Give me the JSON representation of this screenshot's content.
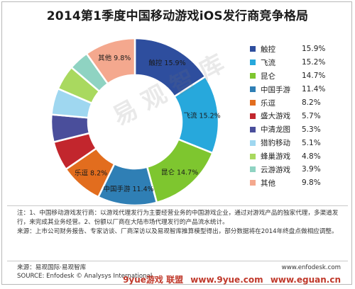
{
  "chart_data": {
    "type": "pie",
    "title": "2014第1季度中国移动游戏iOS发行商竞争格局",
    "categories": [
      "触控",
      "飞流",
      "昆仑",
      "中国手游",
      "乐逗",
      "盛大游戏",
      "中清龙图",
      "猎豹移动",
      "蜂巢游戏",
      "云游游戏",
      "其他"
    ],
    "value_labels": [
      "15.9%",
      "15.2%",
      "14.7%",
      "11.4%",
      "8.2%",
      "5.7%",
      "5.3%",
      "5.1%",
      "4.8%",
      "3.9%",
      "9.8%"
    ],
    "values": [
      15.9,
      15.2,
      14.7,
      11.4,
      8.2,
      5.7,
      5.3,
      5.1,
      4.8,
      3.9,
      9.8
    ],
    "colors": [
      "#2e4e9e",
      "#27a8dc",
      "#7ec62f",
      "#2f7fb5",
      "#e26d1e",
      "#c2262d",
      "#4a4e9b",
      "#9fd7f0",
      "#a9d95f",
      "#8fd3c2",
      "#f4a88e"
    ],
    "donut": true,
    "legend_position": "right"
  },
  "notes": {
    "line1": "注：1、中国移动游戏发行商：以游戏代理发行为主要经营业务的中国游戏企业，通过对游戏产品的独家代理，多渠道发行，来完成其业务经营。2、份额以厂商在大陆市场代理发行的产品流水统计。",
    "line2": "来源：上市公司财务报告、专家访谈、厂商深访以及易观智库推算模型得出，部分数据将在2014年终盘点做相应调整。"
  },
  "source": {
    "cn": "来源：易观国际·易观智库",
    "en": "SOURCE: Enfodesk © Analysys International"
  },
  "site": {
    "url1": "www.enfodesk.com",
    "url2": "www.9yue.com",
    "url3": "www.eguan.cn"
  },
  "watermarks": {
    "center": "易 观 智 库",
    "bottom": "9yue游戏 联盟"
  }
}
